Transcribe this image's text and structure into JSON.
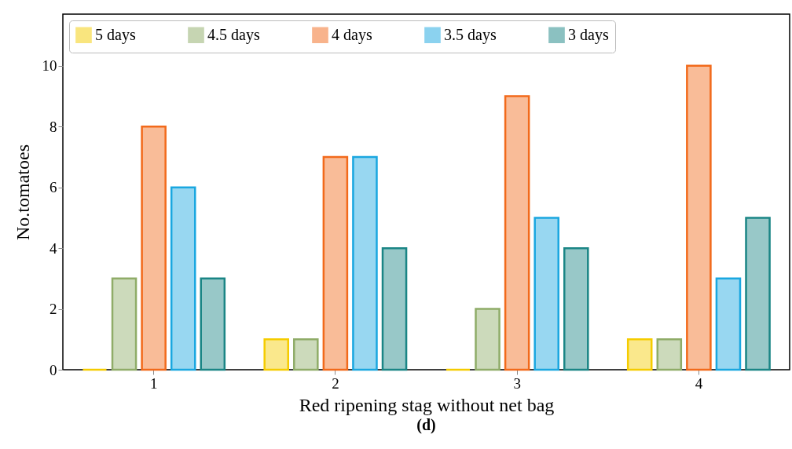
{
  "chart_data": {
    "type": "bar",
    "xlabel": "Red ripening stag without net bag",
    "ylabel": "No.tomatoes",
    "annotations": [
      "(d)"
    ],
    "categories": [
      "1",
      "2",
      "3",
      "4"
    ],
    "series": [
      {
        "name": "5 days",
        "color": "#f5cc00",
        "values": [
          0,
          1,
          0,
          1
        ]
      },
      {
        "name": "4.5 days",
        "color": "#8fac68",
        "values": [
          3,
          1,
          2,
          1
        ]
      },
      {
        "name": "4 days",
        "color": "#f26a1b",
        "values": [
          8,
          7,
          9,
          10
        ]
      },
      {
        "name": "3.5 days",
        "color": "#1aa7e0",
        "values": [
          6,
          7,
          5,
          3
        ]
      },
      {
        "name": "3 days",
        "color": "#1a8585",
        "values": [
          3,
          4,
          4,
          5
        ]
      }
    ],
    "ylim": [
      0,
      11.7
    ],
    "yticks": [
      0,
      2,
      4,
      6,
      8,
      10
    ],
    "grid": false,
    "legend": "top"
  }
}
